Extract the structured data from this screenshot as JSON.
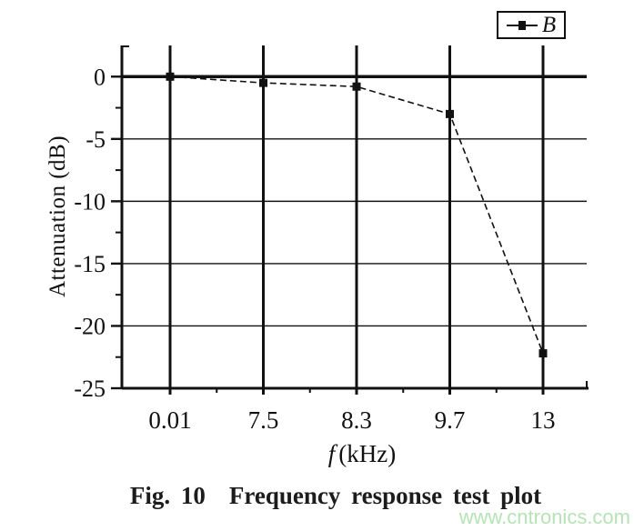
{
  "chart_data": {
    "type": "line",
    "title": "",
    "categories": [
      "0.01",
      "7.5",
      "8.3",
      "9.7",
      "13"
    ],
    "series": [
      {
        "name": "B",
        "values": [
          0,
          -0.5,
          -0.8,
          -3.0,
          -22.2
        ],
        "color": "#111111",
        "marker": "square",
        "line_style": "dashed"
      }
    ],
    "xlabel_italic": "f",
    "xlabel_rest": "(kHz)",
    "ylabel": "Attenuation (dB)",
    "y_ticks": [
      0,
      -5,
      -10,
      -15,
      -20,
      -25
    ],
    "y_minor_ticks": [
      -2.5,
      -7.5,
      -12.5,
      -17.5,
      -22.5
    ],
    "ylim_top": 2.5,
    "ylim_bottom": -25,
    "grid": "both",
    "legend_position": "top-right"
  },
  "legend": {
    "series_label": "B"
  },
  "caption": {
    "label": "Fig. 10",
    "text": "Frequency response test plot"
  },
  "watermark": {
    "text": "www.cntronics.com",
    "color": "#b6e3b6"
  },
  "colors": {
    "ink": "#111111",
    "background": "#ffffff"
  }
}
